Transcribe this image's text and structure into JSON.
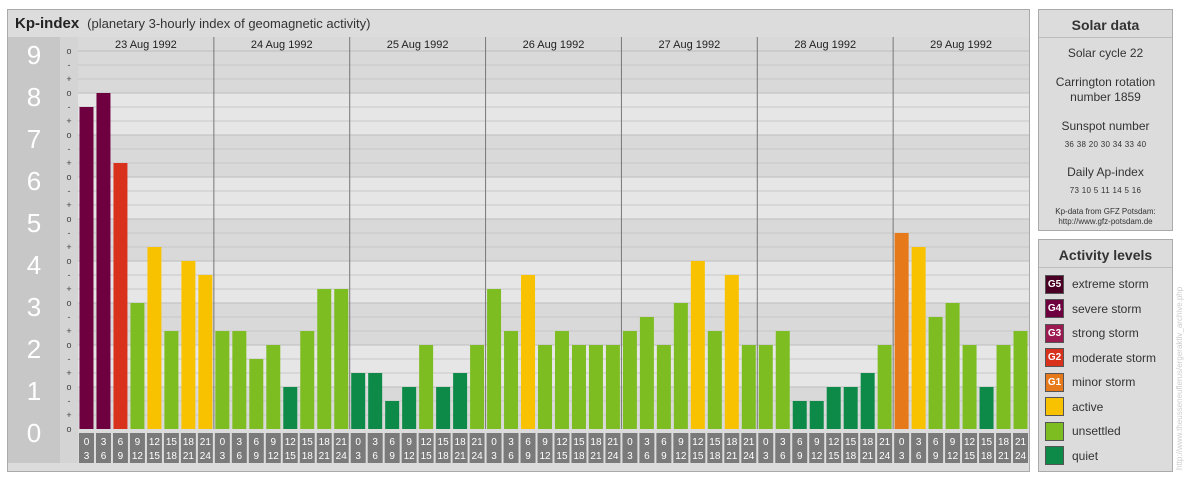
{
  "title": {
    "main": "Kp-index",
    "subtitle": "(planetary 3-hourly index of geomagnetic activity)"
  },
  "chart_data": {
    "type": "bar",
    "ylim": [
      0,
      9
    ],
    "ytick_labels": [
      "0",
      "1",
      "2",
      "3",
      "4",
      "5",
      "6",
      "7",
      "8",
      "9"
    ],
    "minor_tick_labels": [
      "o",
      "+",
      "-",
      "o",
      "+",
      "-",
      "o",
      "+",
      "-",
      "o",
      "+",
      "-",
      "o",
      "+",
      "-",
      "o",
      "+",
      "-",
      "o",
      "+",
      "-",
      "o",
      "+",
      "-",
      "o",
      "+",
      "-",
      "o"
    ],
    "days": [
      "23 Aug 1992",
      "24 Aug 1992",
      "25 Aug 1992",
      "26 Aug 1992",
      "27 Aug 1992",
      "28 Aug 1992",
      "29 Aug 1992"
    ],
    "interval_labels": [
      [
        "0",
        "3"
      ],
      [
        "3",
        "6"
      ],
      [
        "6",
        "9"
      ],
      [
        "9",
        "12"
      ],
      [
        "12",
        "15"
      ],
      [
        "15",
        "18"
      ],
      [
        "18",
        "21"
      ],
      [
        "21",
        "24"
      ]
    ],
    "values": [
      [
        7.667,
        8.0,
        6.333,
        3.0,
        4.333,
        2.333,
        4.0,
        3.667
      ],
      [
        2.333,
        2.333,
        1.667,
        2.0,
        1.0,
        2.333,
        3.333,
        3.333
      ],
      [
        1.333,
        1.333,
        0.667,
        1.0,
        2.0,
        1.0,
        1.333,
        2.0
      ],
      [
        3.333,
        2.333,
        3.667,
        2.0,
        2.333,
        2.0,
        2.0,
        2.0
      ],
      [
        2.333,
        2.667,
        2.0,
        3.0,
        4.0,
        2.333,
        3.667,
        2.0
      ],
      [
        2.0,
        2.333,
        0.667,
        0.667,
        1.0,
        1.0,
        1.333,
        2.0
      ],
      [
        4.667,
        4.333,
        2.667,
        3.0,
        2.0,
        1.0,
        2.0,
        2.333
      ]
    ]
  },
  "solar": {
    "title": "Solar data",
    "cycle": "Solar cycle 22",
    "carrington_line1": "Carrington rotation",
    "carrington_line2": "number 1859",
    "sunspot_title": "Sunspot number",
    "sunspot_values": "36 38 20 30 34 33 40",
    "ap_title": "Daily Ap-index",
    "ap_values": "73 10 5 11 14 5 16",
    "credit_line1": "Kp-data from GFZ Potsdam:",
    "credit_line2": "http://www.gfz-potsdam.de"
  },
  "activity": {
    "title": "Activity levels",
    "levels": [
      {
        "code": "G5",
        "label": "extreme storm",
        "color": "#4a0024"
      },
      {
        "code": "G4",
        "label": "severe storm",
        "color": "#6e0040"
      },
      {
        "code": "G3",
        "label": "strong storm",
        "color": "#9c1a52"
      },
      {
        "code": "G2",
        "label": "moderate storm",
        "color": "#d8321d"
      },
      {
        "code": "G1",
        "label": "minor storm",
        "color": "#e6791a"
      },
      {
        "code": "",
        "label": "active",
        "color": "#f9c200"
      },
      {
        "code": "",
        "label": "unsettled",
        "color": "#7dbd22"
      },
      {
        "code": "",
        "label": "quiet",
        "color": "#0d8a47"
      }
    ]
  },
  "watermark": "http://www.theusseneuflerus/ergeraktiv_archive.php"
}
